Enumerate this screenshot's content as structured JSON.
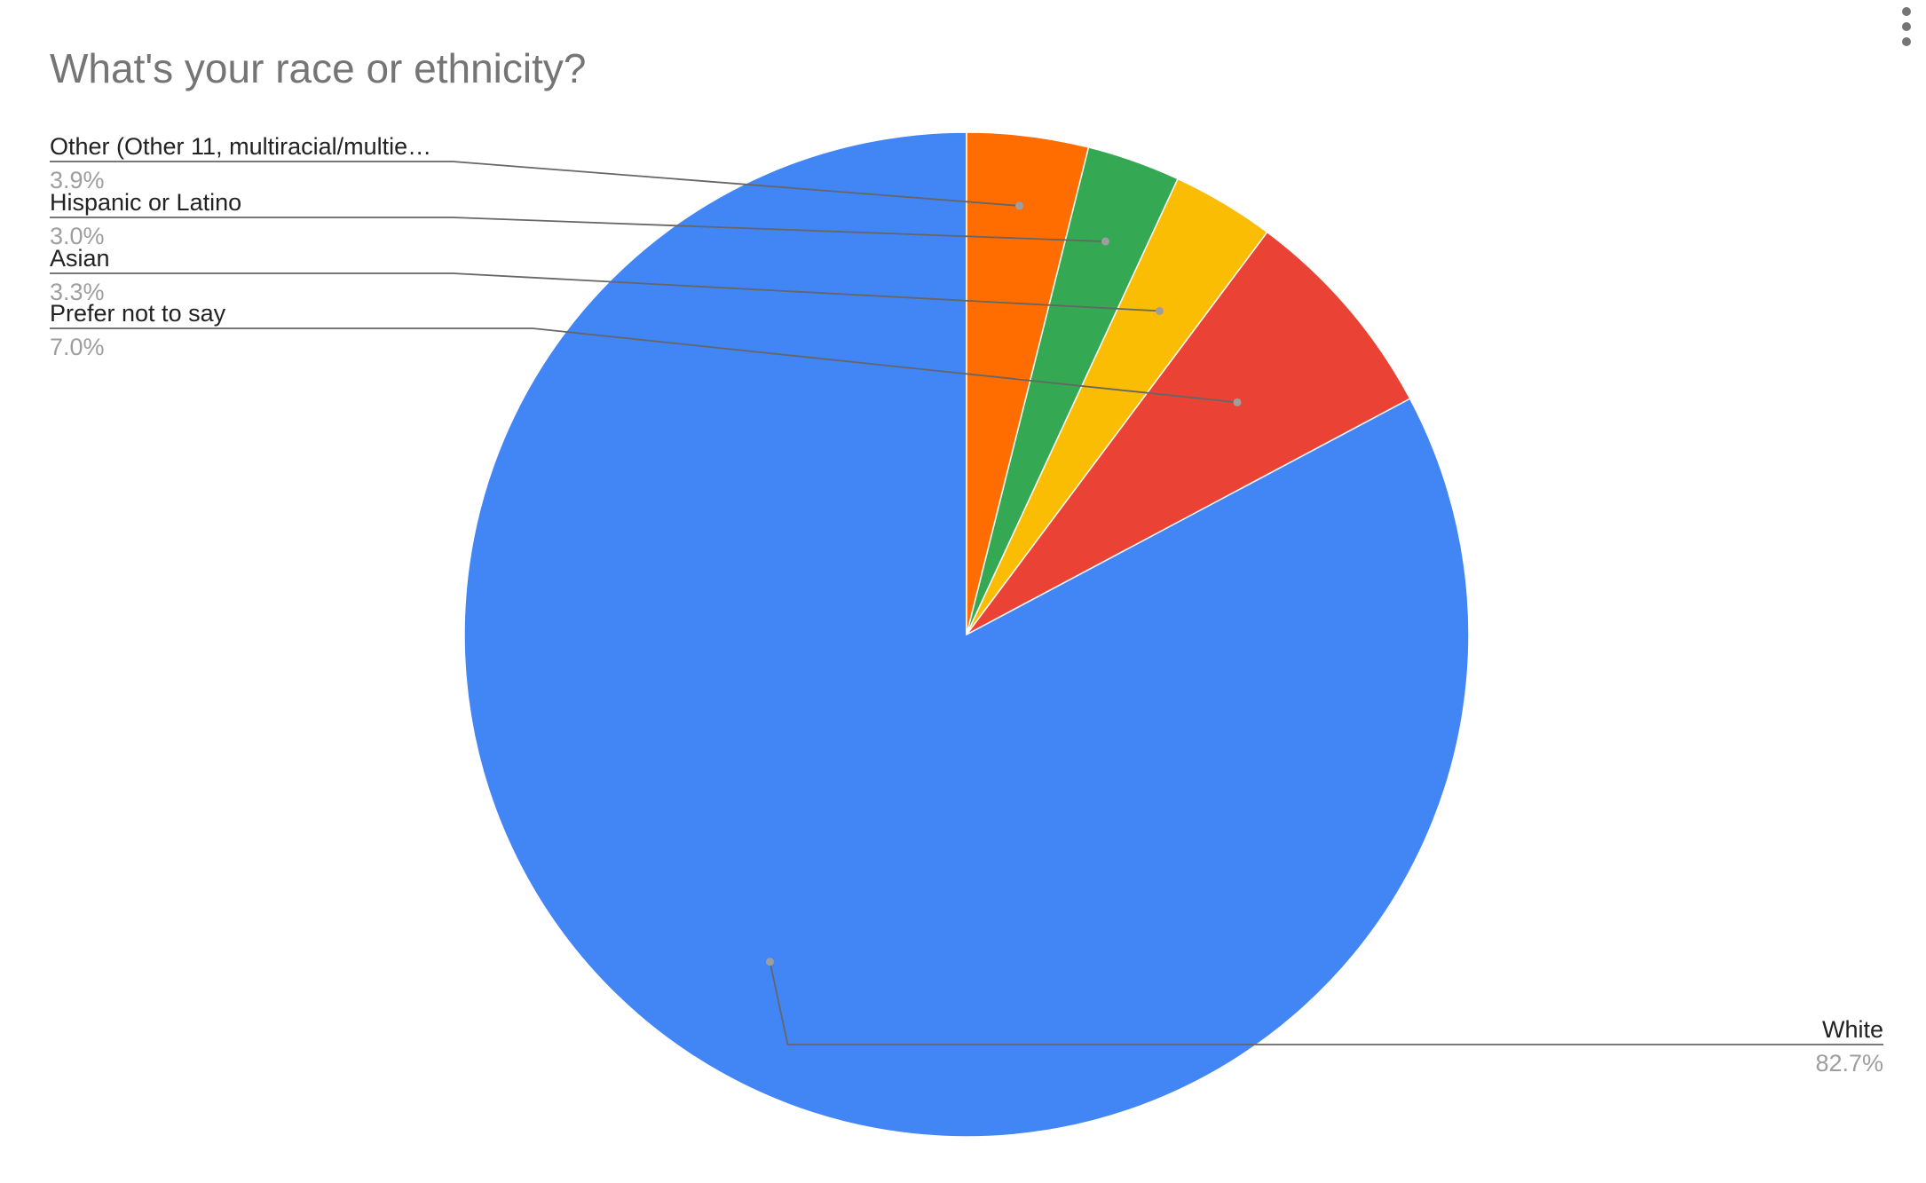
{
  "chart_data": {
    "type": "pie",
    "title": "What's your race or ethnicity?",
    "slices": [
      {
        "label": "White",
        "value": 82.7,
        "value_label": "82.7%",
        "color": "#4285F4"
      },
      {
        "label": "Prefer not to say",
        "value": 7.0,
        "value_label": "7.0%",
        "color": "#EA4335"
      },
      {
        "label": "Asian",
        "value": 3.3,
        "value_label": "3.3%",
        "color": "#FBBC04"
      },
      {
        "label": "Hispanic or Latino",
        "value": 3.0,
        "value_label": "3.0%",
        "color": "#34A853"
      },
      {
        "label": "Other (Other 11, multiracial/multie…",
        "value": 3.9,
        "value_label": "3.9%",
        "color": "#FF6D01"
      }
    ],
    "start_angle_deg": 0,
    "direction": "clockwise",
    "legend": "labeled"
  },
  "menu": {
    "icon": "more-vert-icon"
  }
}
